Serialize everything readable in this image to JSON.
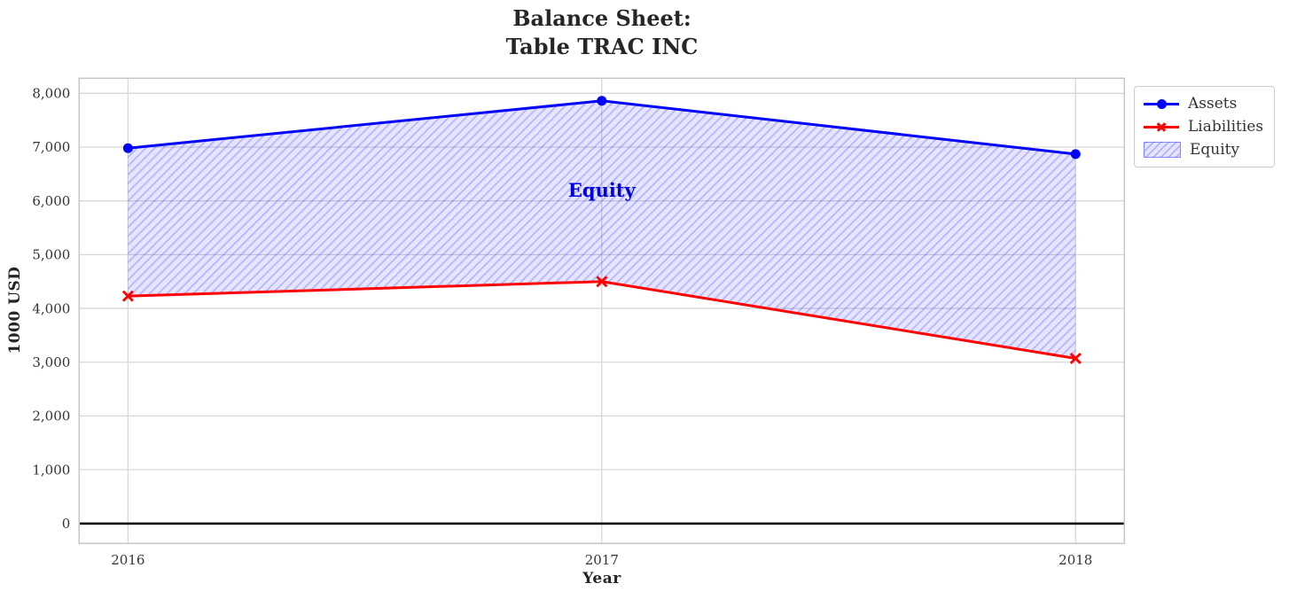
{
  "chart_data": {
    "type": "line",
    "title_lines": [
      "Balance Sheet:",
      "Table TRAC INC"
    ],
    "xlabel": "Year",
    "ylabel": "1000 USD",
    "x": [
      2016,
      2017,
      2018
    ],
    "series": [
      {
        "name": "Assets",
        "values": [
          6980,
          7860,
          6870
        ],
        "color": "#0000ff",
        "marker": "circle",
        "line_width": 3
      },
      {
        "name": "Liabilities",
        "values": [
          4230,
          4500,
          3070
        ],
        "color": "#ff0000",
        "marker": "x",
        "line_width": 3
      }
    ],
    "fill_between": {
      "label": "Equity",
      "upper": "Assets",
      "lower": "Liabilities",
      "fill_color": "#0000ff",
      "fill_opacity": 0.1,
      "hatch": "///",
      "hatch_opacity": 0.22
    },
    "annotation": {
      "text": "Equity",
      "x": 2017,
      "y": 6200,
      "color": "#0000dd"
    },
    "xticks": {
      "values": [
        2016,
        2017,
        2018
      ],
      "labels": [
        "2016",
        "2017",
        "2018"
      ]
    },
    "yticks": {
      "values": [
        0,
        1000,
        2000,
        3000,
        4000,
        5000,
        6000,
        7000,
        8000
      ],
      "labels": [
        "0",
        "1,000",
        "2,000",
        "3,000",
        "4,000",
        "5,000",
        "6,000",
        "7,000",
        "8,000"
      ]
    },
    "xlim": [
      2015.897,
      2018.103
    ],
    "ylim": [
      -370,
      8280
    ],
    "grid": true,
    "zero_line": {
      "value": 0,
      "color": "#000000",
      "width": 2.5
    },
    "legend": {
      "position": "upper-right-outside",
      "entries": [
        {
          "label": "Assets",
          "type": "line",
          "color": "#0000ff",
          "marker": "circle"
        },
        {
          "label": "Liabilities",
          "type": "line",
          "color": "#ff0000",
          "marker": "x"
        },
        {
          "label": "Equity",
          "type": "patch",
          "color": "#0000ff"
        }
      ]
    },
    "colors": {
      "grid": "#d8d8d8",
      "spine": "#c6c6c6",
      "tick_text": "#333333",
      "title_text": "#262626"
    }
  }
}
